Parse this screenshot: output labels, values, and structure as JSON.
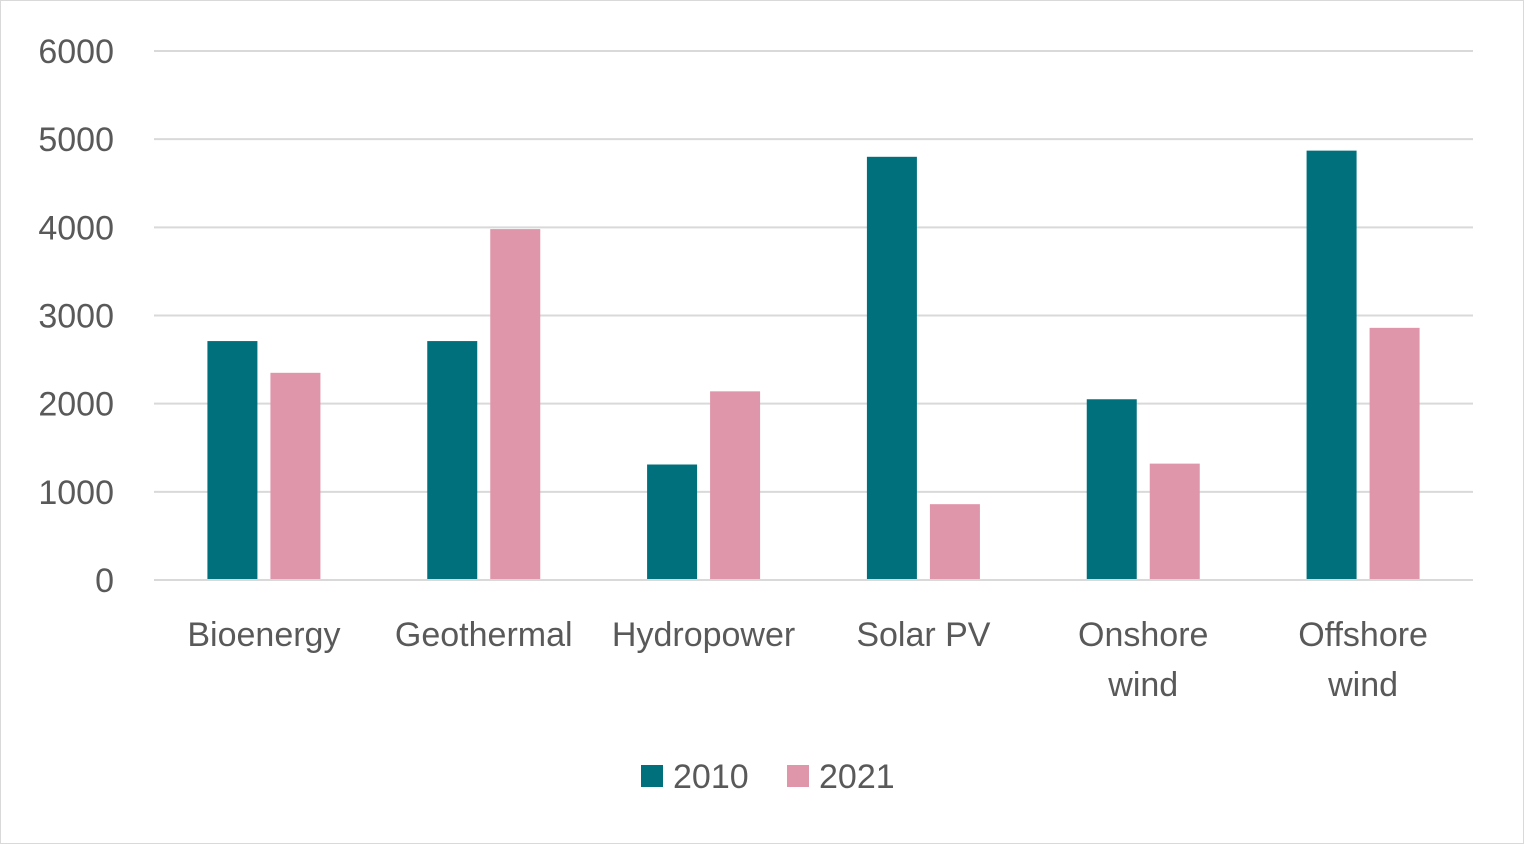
{
  "chart_data": {
    "type": "bar",
    "title": "",
    "xlabel": "",
    "ylabel": "",
    "categories": [
      [
        "Bioenergy"
      ],
      [
        "Geothermal"
      ],
      [
        "Hydropower"
      ],
      [
        "Solar PV"
      ],
      [
        "Onshore",
        "wind"
      ],
      [
        "Offshore",
        "wind"
      ]
    ],
    "series": [
      {
        "name": "2010",
        "color": "#00707d",
        "values": [
          2710,
          2710,
          1310,
          4800,
          2050,
          4870
        ]
      },
      {
        "name": "2021",
        "color": "#e096aa",
        "values": [
          2350,
          3980,
          2140,
          860,
          1320,
          2860
        ]
      }
    ],
    "ylim": [
      0,
      6000
    ],
    "yticks": [
      0,
      1000,
      2000,
      3000,
      4000,
      5000,
      6000
    ],
    "grid": true,
    "legend": "bottom"
  }
}
